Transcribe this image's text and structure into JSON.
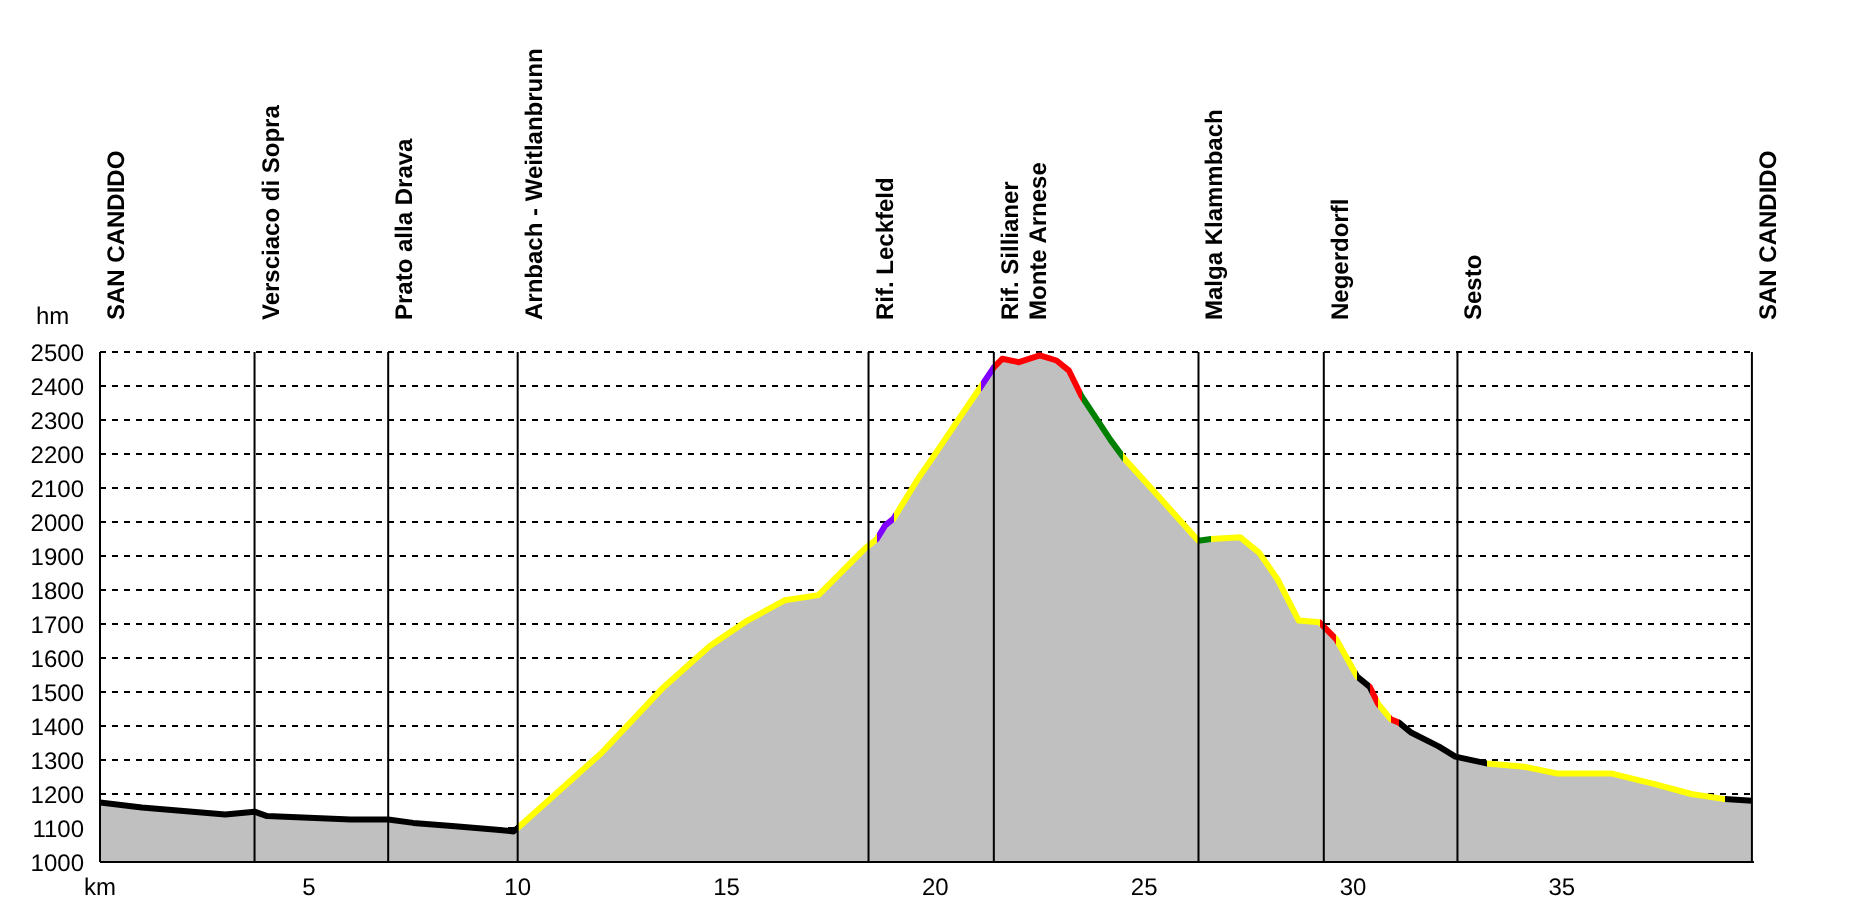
{
  "chart_data": {
    "type": "area",
    "ylabel": "hm",
    "xlim": [
      0,
      39.6
    ],
    "xticks": [
      {
        "value": 0,
        "label": "km"
      },
      5,
      10,
      15,
      20,
      25,
      30,
      35
    ],
    "ylim": [
      1000,
      2500
    ],
    "yticks": [
      1000,
      1100,
      1200,
      1300,
      1400,
      1500,
      1600,
      1700,
      1800,
      1900,
      2000,
      2100,
      2200,
      2300,
      2400,
      2500
    ],
    "grid": "y",
    "series": [
      {
        "color": "#c0c0c0",
        "x": [
          0,
          1,
          2,
          3,
          3.7,
          4,
          5,
          6,
          6.9,
          7.5,
          8.5,
          9.5,
          9.9,
          10,
          12,
          13.5,
          14.6,
          15.5,
          16.4,
          17.2,
          18.3,
          18.6,
          18.8,
          19,
          19.6,
          19.94,
          20.6,
          21.1,
          21.4,
          21.6,
          22,
          22.5,
          22.9,
          23.2,
          23.5,
          24.2,
          24.5,
          25.2,
          26.15,
          26.3,
          26.6,
          27.3,
          27.75,
          28.2,
          28.7,
          29.2,
          29.6,
          30.1,
          30.4,
          30.6,
          30.9,
          31.1,
          31.4,
          32.05,
          32.45,
          33.2,
          34.1,
          34.9,
          35.6,
          36.2,
          37.2,
          38.1,
          38.9,
          39.55
        ],
        "values": [
          1175,
          1160,
          1150,
          1140,
          1148,
          1135,
          1130,
          1125,
          1125,
          1115,
          1105,
          1095,
          1090,
          1100,
          1320,
          1515,
          1635,
          1710,
          1770,
          1785,
          1920,
          1950,
          1990,
          2010,
          2130,
          2190,
          2310,
          2400,
          2455,
          2480,
          2470,
          2490,
          2475,
          2445,
          2370,
          2240,
          2190,
          2095,
          1965,
          1945,
          1950,
          1955,
          1910,
          1830,
          1710,
          1705,
          1655,
          1545,
          1515,
          1465,
          1420,
          1410,
          1380,
          1340,
          1310,
          1290,
          1280,
          1260,
          1260,
          1260,
          1230,
          1200,
          1185,
          1180
        ],
        "colors": [
          "#000000",
          "#000000",
          "#000000",
          "#000000",
          "#000000",
          "#000000",
          "#000000",
          "#000000",
          "#000000",
          "#000000",
          "#000000",
          "#000000",
          "#000000",
          "#ffff00",
          "#ffff00",
          "#ffff00",
          "#ffff00",
          "#ffff00",
          "#ffff00",
          "#ffff00",
          "#ffff00",
          "#8000ff",
          "#8000ff",
          "#ffff00",
          "#ffff00",
          "#ffff00",
          "#ffff00",
          "#8000ff",
          "#ff0000",
          "#ff0000",
          "#ff0000",
          "#ff0000",
          "#ff0000",
          "#ff0000",
          "#008000",
          "#008000",
          "#ffff00",
          "#ffff00",
          "#ffff00",
          "#008000",
          "#ffff00",
          "#ffff00",
          "#ffff00",
          "#ffff00",
          "#ffff00",
          "#ff0000",
          "#ffff00",
          "#000000",
          "#ff0000",
          "#ffff00",
          "#ff0000",
          "#000000",
          "#000000",
          "#000000",
          "#000000",
          "#ffff00",
          "#ffff00",
          "#ffff00",
          "#ffff00",
          "#ffff00",
          "#ffff00",
          "#ffff00",
          "#000000",
          "#000000"
        ]
      }
    ],
    "ref_lines": [
      {
        "axis": "x",
        "value": 0,
        "label": "SAN CANDIDO",
        "color": "#000000"
      },
      {
        "axis": "x",
        "value": 3.7,
        "label": "Versciaco di Sopra",
        "color": "#000000"
      },
      {
        "axis": "x",
        "value": 6.9,
        "label": "Prato alla Drava",
        "color": "#000000"
      },
      {
        "axis": "x",
        "value": 10,
        "label": "Arnbach - Weitlanbrunn",
        "color": "#000000"
      },
      {
        "axis": "x",
        "value": 18.4,
        "label": "Rif. Leckfeld",
        "color": "#000000"
      },
      {
        "axis": "x",
        "value": 21.4,
        "label": "Rif. Sillianer\nMonte Arnese",
        "color": "#000000"
      },
      {
        "axis": "x",
        "value": 26.3,
        "label": "Malga Klammbach",
        "color": "#000000"
      },
      {
        "axis": "x",
        "value": 29.3,
        "label": "Negerdorfl",
        "color": "#000000"
      },
      {
        "axis": "x",
        "value": 32.5,
        "label": "Sesto",
        "color": "#000000"
      },
      {
        "axis": "x",
        "value": 39.55,
        "label": "SAN CANDIDO",
        "color": "#000000"
      }
    ]
  }
}
